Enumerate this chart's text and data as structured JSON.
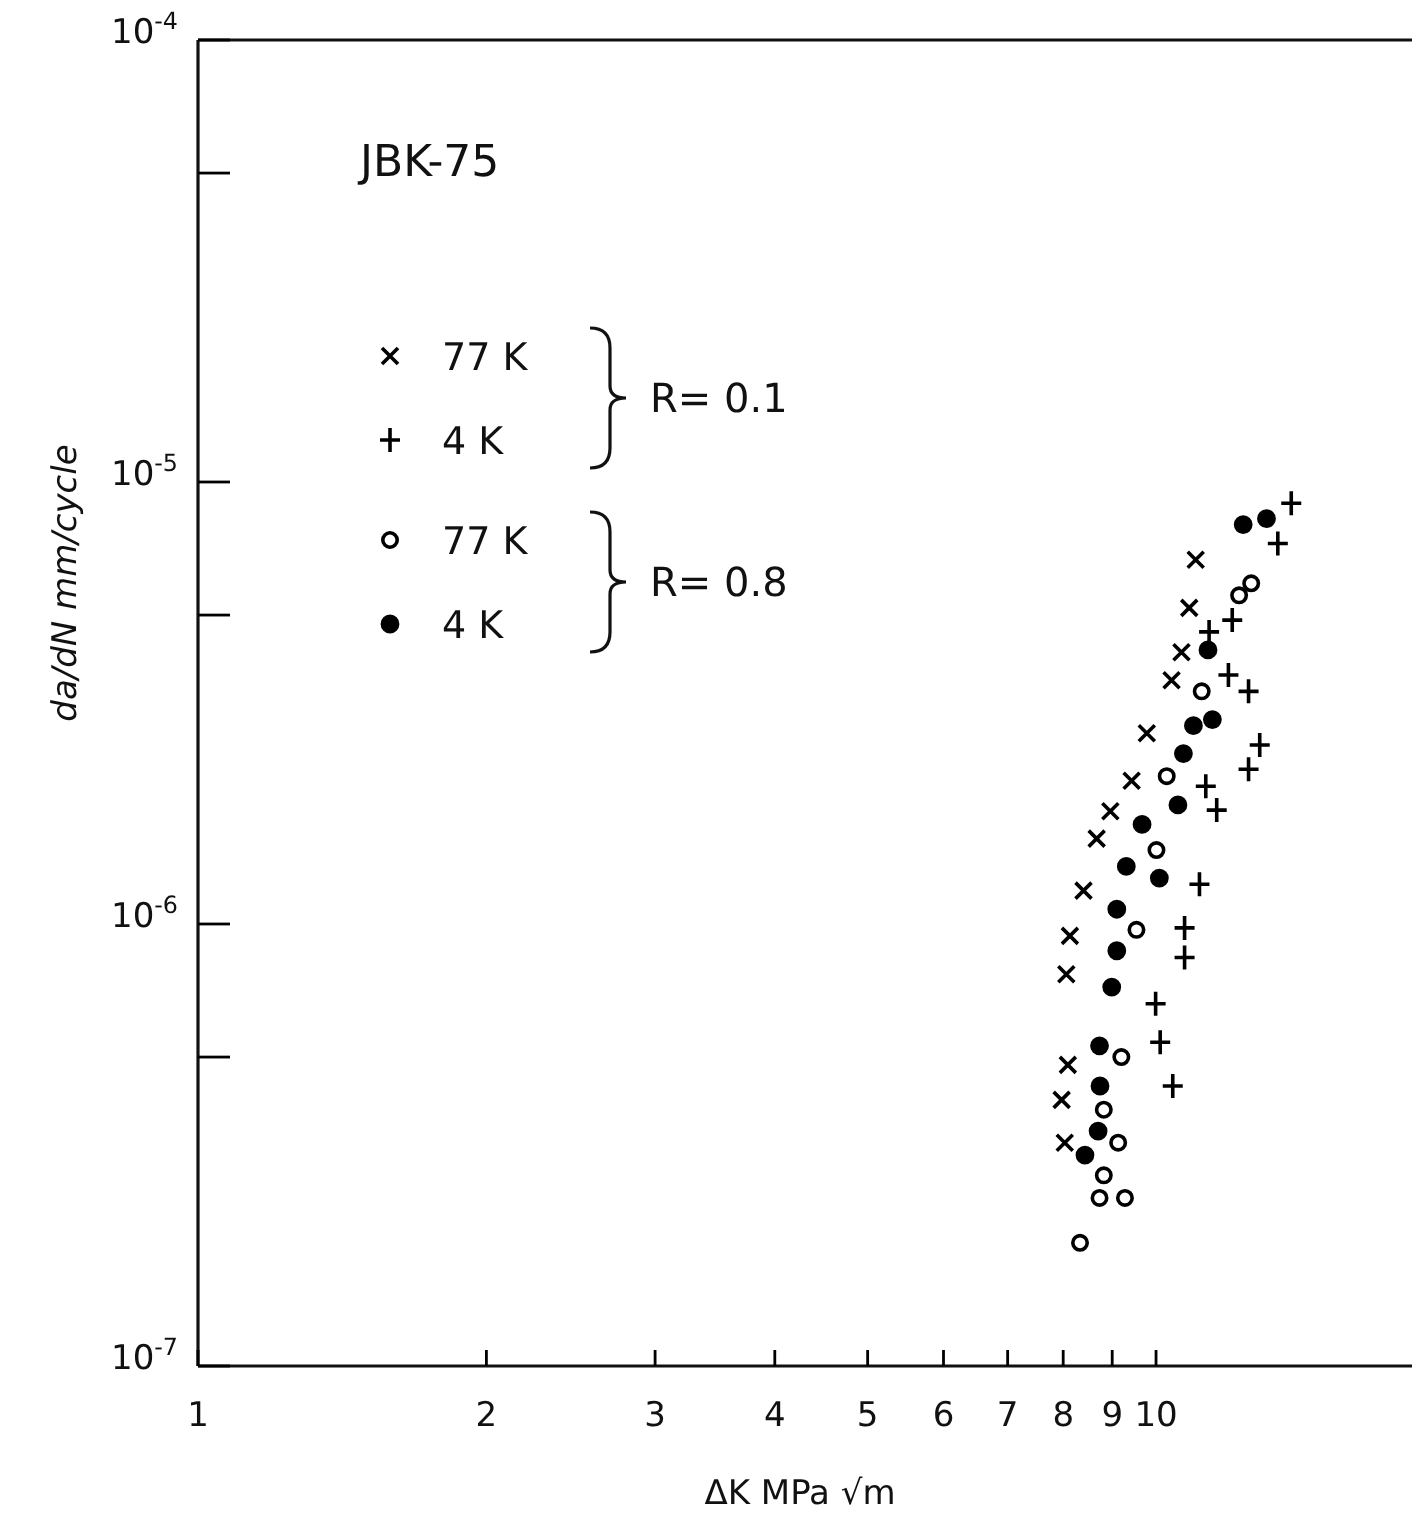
{
  "chart_data": {
    "type": "scatter",
    "xlabel": "ΔK   MPa √m",
    "ylabel": "da/dN   mm/cycle",
    "log": "xy",
    "xlim": [
      1,
      18.5
    ],
    "ylim": [
      1e-07,
      0.0001
    ],
    "xticks": [
      1,
      2,
      3,
      4,
      5,
      6,
      7,
      8,
      9,
      10
    ],
    "yticks": [
      {
        "value": 1e-07,
        "label": "10$^{-7}$"
      },
      {
        "value": 5e-07,
        "label": null
      },
      {
        "value": 1e-06,
        "label": "10$^{-6}$"
      },
      {
        "value": 5e-06,
        "label": null
      },
      {
        "value": 1e-05,
        "label": "10$^{-5}$"
      },
      {
        "value": 5e-05,
        "label": null
      },
      {
        "value": 0.0001,
        "label": "10$^{-4}$"
      }
    ],
    "grid": false,
    "legend": "top left",
    "annotations": [
      "JBK-75",
      "R= 0.1",
      "R= 0.8"
    ],
    "series": [
      {
        "name": "77 K",
        "color": "#000000",
        "marker": "x",
        "x": [
          11.0,
          10.83,
          10.63,
          10.38,
          9.78,
          9.43,
          8.96,
          8.67,
          8.4,
          8.13,
          8.06,
          8.09,
          7.97,
          8.03
        ],
        "values": [
          6.67e-06,
          5.19e-06,
          4.12e-06,
          3.56e-06,
          2.7e-06,
          2.11e-06,
          1.8e-06,
          1.56e-06,
          1.19e-06,
          9.4e-07,
          7.7e-07,
          4.8e-07,
          4e-07,
          3.2e-07
        ]
      },
      {
        "name": "4 K",
        "color": "#000000",
        "marker": "cross",
        "x": [
          13.84,
          13.4,
          12.01,
          11.36,
          11.9,
          12.49,
          12.83,
          12.49,
          11.27,
          11.57,
          11.1,
          10.71,
          10.71,
          9.99,
          10.1,
          10.41
        ],
        "values": [
          8.95e-06,
          7.26e-06,
          4.87e-06,
          4.58e-06,
          3.66e-06,
          3.36e-06,
          2.54e-06,
          2.24e-06,
          2.05e-06,
          1.81e-06,
          1.23e-06,
          9.8e-07,
          8.4e-07,
          6.6e-07,
          5.4e-07,
          4.3e-07
        ]
      },
      {
        "name": "77 K",
        "color": "#000000",
        "marker": "circle-open",
        "x": [
          12.57,
          12.21,
          11.16,
          10.26,
          10.01,
          9.54,
          9.2,
          8.82,
          9.13,
          8.82,
          8.73,
          9.28,
          8.33
        ],
        "values": [
          5.9e-06,
          5.54e-06,
          3.36e-06,
          2.16e-06,
          1.47e-06,
          9.7e-07,
          5e-07,
          3.8e-07,
          3.2e-07,
          2.7e-07,
          2.4e-07,
          2.4e-07,
          1.9e-07
        ]
      },
      {
        "name": "4 K",
        "color": "#000000",
        "marker": "circle",
        "x": [
          12.33,
          13.04,
          11.33,
          10.94,
          11.45,
          10.68,
          10.54,
          9.67,
          9.31,
          10.08,
          9.1,
          9.1,
          8.99,
          8.73,
          8.74,
          8.7,
          8.43
        ],
        "values": [
          8.01e-06,
          8.26e-06,
          4.17e-06,
          2.81e-06,
          2.9e-06,
          2.43e-06,
          1.86e-06,
          1.68e-06,
          1.35e-06,
          1.27e-06,
          1.08e-06,
          8.7e-07,
          7.2e-07,
          5.3e-07,
          4.3e-07,
          3.4e-07,
          3e-07
        ]
      }
    ]
  }
}
